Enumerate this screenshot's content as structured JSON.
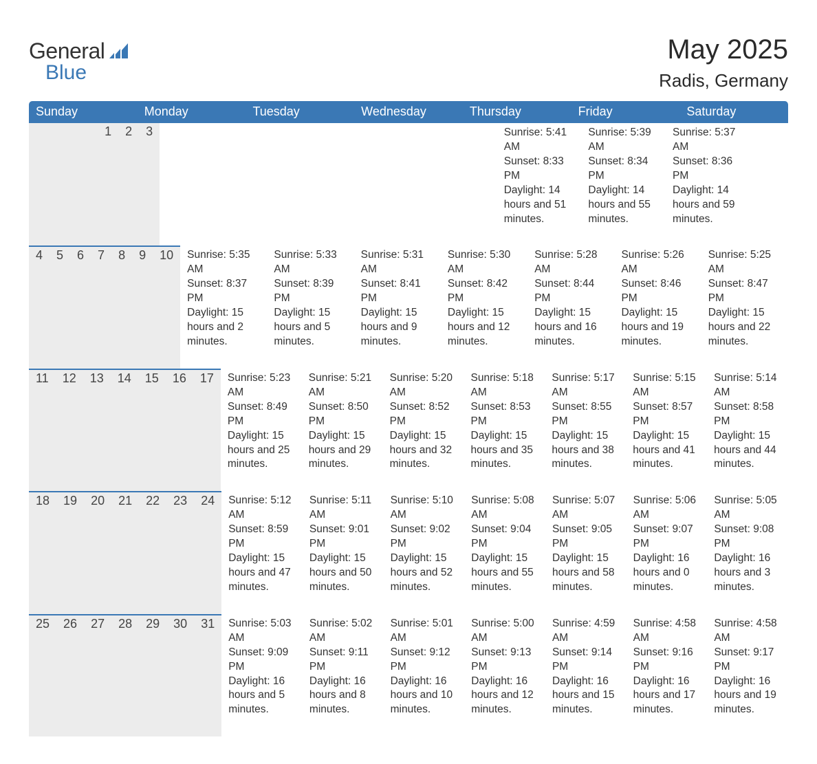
{
  "brand": {
    "general": "General",
    "blue": "Blue"
  },
  "title": {
    "month": "May 2025",
    "location": "Radis, Germany"
  },
  "colors": {
    "header_bg": "#3a78b5",
    "header_text": "#ffffff",
    "daynum_bg": "#ececec",
    "border": "#3a78b5",
    "body_text": "#333333",
    "background": "#ffffff"
  },
  "weekdays": [
    "Sunday",
    "Monday",
    "Tuesday",
    "Wednesday",
    "Thursday",
    "Friday",
    "Saturday"
  ],
  "weeks": [
    [
      null,
      null,
      null,
      null,
      {
        "n": "1",
        "sunrise": "Sunrise: 5:41 AM",
        "sunset": "Sunset: 8:33 PM",
        "daylight": "Daylight: 14 hours and 51 minutes."
      },
      {
        "n": "2",
        "sunrise": "Sunrise: 5:39 AM",
        "sunset": "Sunset: 8:34 PM",
        "daylight": "Daylight: 14 hours and 55 minutes."
      },
      {
        "n": "3",
        "sunrise": "Sunrise: 5:37 AM",
        "sunset": "Sunset: 8:36 PM",
        "daylight": "Daylight: 14 hours and 59 minutes."
      }
    ],
    [
      {
        "n": "4",
        "sunrise": "Sunrise: 5:35 AM",
        "sunset": "Sunset: 8:37 PM",
        "daylight": "Daylight: 15 hours and 2 minutes."
      },
      {
        "n": "5",
        "sunrise": "Sunrise: 5:33 AM",
        "sunset": "Sunset: 8:39 PM",
        "daylight": "Daylight: 15 hours and 5 minutes."
      },
      {
        "n": "6",
        "sunrise": "Sunrise: 5:31 AM",
        "sunset": "Sunset: 8:41 PM",
        "daylight": "Daylight: 15 hours and 9 minutes."
      },
      {
        "n": "7",
        "sunrise": "Sunrise: 5:30 AM",
        "sunset": "Sunset: 8:42 PM",
        "daylight": "Daylight: 15 hours and 12 minutes."
      },
      {
        "n": "8",
        "sunrise": "Sunrise: 5:28 AM",
        "sunset": "Sunset: 8:44 PM",
        "daylight": "Daylight: 15 hours and 16 minutes."
      },
      {
        "n": "9",
        "sunrise": "Sunrise: 5:26 AM",
        "sunset": "Sunset: 8:46 PM",
        "daylight": "Daylight: 15 hours and 19 minutes."
      },
      {
        "n": "10",
        "sunrise": "Sunrise: 5:25 AM",
        "sunset": "Sunset: 8:47 PM",
        "daylight": "Daylight: 15 hours and 22 minutes."
      }
    ],
    [
      {
        "n": "11",
        "sunrise": "Sunrise: 5:23 AM",
        "sunset": "Sunset: 8:49 PM",
        "daylight": "Daylight: 15 hours and 25 minutes."
      },
      {
        "n": "12",
        "sunrise": "Sunrise: 5:21 AM",
        "sunset": "Sunset: 8:50 PM",
        "daylight": "Daylight: 15 hours and 29 minutes."
      },
      {
        "n": "13",
        "sunrise": "Sunrise: 5:20 AM",
        "sunset": "Sunset: 8:52 PM",
        "daylight": "Daylight: 15 hours and 32 minutes."
      },
      {
        "n": "14",
        "sunrise": "Sunrise: 5:18 AM",
        "sunset": "Sunset: 8:53 PM",
        "daylight": "Daylight: 15 hours and 35 minutes."
      },
      {
        "n": "15",
        "sunrise": "Sunrise: 5:17 AM",
        "sunset": "Sunset: 8:55 PM",
        "daylight": "Daylight: 15 hours and 38 minutes."
      },
      {
        "n": "16",
        "sunrise": "Sunrise: 5:15 AM",
        "sunset": "Sunset: 8:57 PM",
        "daylight": "Daylight: 15 hours and 41 minutes."
      },
      {
        "n": "17",
        "sunrise": "Sunrise: 5:14 AM",
        "sunset": "Sunset: 8:58 PM",
        "daylight": "Daylight: 15 hours and 44 minutes."
      }
    ],
    [
      {
        "n": "18",
        "sunrise": "Sunrise: 5:12 AM",
        "sunset": "Sunset: 8:59 PM",
        "daylight": "Daylight: 15 hours and 47 minutes."
      },
      {
        "n": "19",
        "sunrise": "Sunrise: 5:11 AM",
        "sunset": "Sunset: 9:01 PM",
        "daylight": "Daylight: 15 hours and 50 minutes."
      },
      {
        "n": "20",
        "sunrise": "Sunrise: 5:10 AM",
        "sunset": "Sunset: 9:02 PM",
        "daylight": "Daylight: 15 hours and 52 minutes."
      },
      {
        "n": "21",
        "sunrise": "Sunrise: 5:08 AM",
        "sunset": "Sunset: 9:04 PM",
        "daylight": "Daylight: 15 hours and 55 minutes."
      },
      {
        "n": "22",
        "sunrise": "Sunrise: 5:07 AM",
        "sunset": "Sunset: 9:05 PM",
        "daylight": "Daylight: 15 hours and 58 minutes."
      },
      {
        "n": "23",
        "sunrise": "Sunrise: 5:06 AM",
        "sunset": "Sunset: 9:07 PM",
        "daylight": "Daylight: 16 hours and 0 minutes."
      },
      {
        "n": "24",
        "sunrise": "Sunrise: 5:05 AM",
        "sunset": "Sunset: 9:08 PM",
        "daylight": "Daylight: 16 hours and 3 minutes."
      }
    ],
    [
      {
        "n": "25",
        "sunrise": "Sunrise: 5:03 AM",
        "sunset": "Sunset: 9:09 PM",
        "daylight": "Daylight: 16 hours and 5 minutes."
      },
      {
        "n": "26",
        "sunrise": "Sunrise: 5:02 AM",
        "sunset": "Sunset: 9:11 PM",
        "daylight": "Daylight: 16 hours and 8 minutes."
      },
      {
        "n": "27",
        "sunrise": "Sunrise: 5:01 AM",
        "sunset": "Sunset: 9:12 PM",
        "daylight": "Daylight: 16 hours and 10 minutes."
      },
      {
        "n": "28",
        "sunrise": "Sunrise: 5:00 AM",
        "sunset": "Sunset: 9:13 PM",
        "daylight": "Daylight: 16 hours and 12 minutes."
      },
      {
        "n": "29",
        "sunrise": "Sunrise: 4:59 AM",
        "sunset": "Sunset: 9:14 PM",
        "daylight": "Daylight: 16 hours and 15 minutes."
      },
      {
        "n": "30",
        "sunrise": "Sunrise: 4:58 AM",
        "sunset": "Sunset: 9:16 PM",
        "daylight": "Daylight: 16 hours and 17 minutes."
      },
      {
        "n": "31",
        "sunrise": "Sunrise: 4:58 AM",
        "sunset": "Sunset: 9:17 PM",
        "daylight": "Daylight: 16 hours and 19 minutes."
      }
    ]
  ]
}
